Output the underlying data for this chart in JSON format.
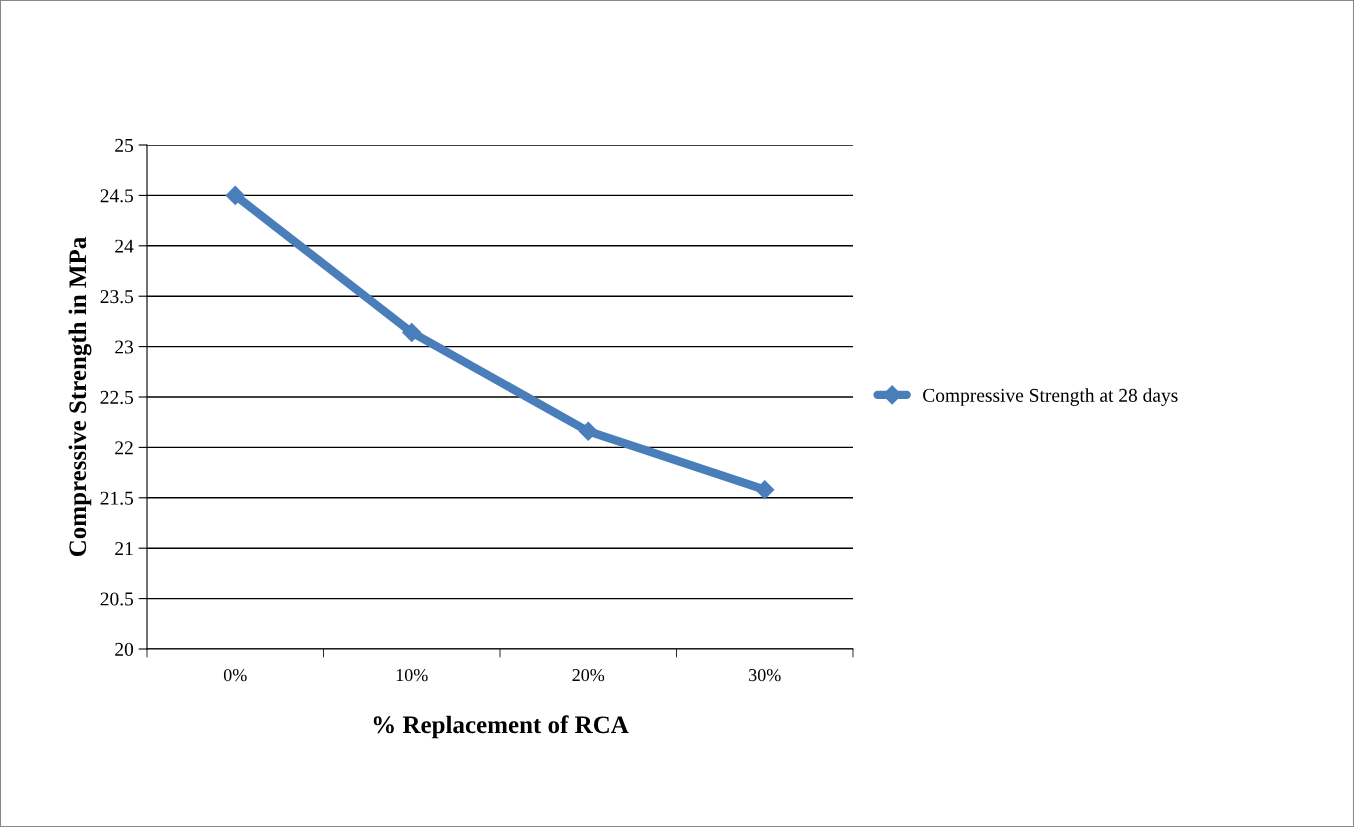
{
  "chart_data": {
    "type": "line",
    "xlabel": "% Replacement of RCA",
    "ylabel": "Compressive Strength in MPa",
    "categories": [
      "0%",
      "10%",
      "20%",
      "30%"
    ],
    "series": [
      {
        "name": "Compressive Strength at 28 days",
        "color": "#4a7ebb",
        "values": [
          24.5,
          23.14,
          22.16,
          21.58
        ]
      }
    ],
    "ylim": [
      20,
      25
    ],
    "yticks": [
      20,
      20.5,
      21,
      21.5,
      22,
      22.5,
      23,
      23.5,
      24,
      24.5,
      25
    ],
    "grid": "y",
    "legend": "right",
    "marker": "diamond",
    "line_style": "solid"
  }
}
